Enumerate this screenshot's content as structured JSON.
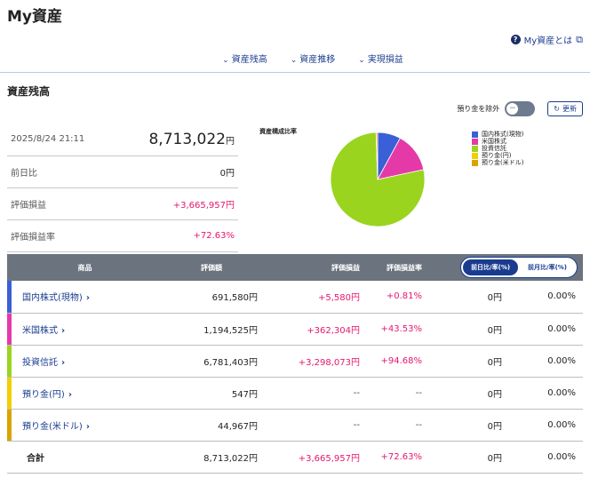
{
  "page_title": "My資産",
  "help_link": "My資産とは",
  "nav": [
    "資産残高",
    "資産推移",
    "実現損益"
  ],
  "section_title": "資産残高",
  "toggle_label": "預り金を除外",
  "toggle_symbol": "−",
  "refresh_label": "更新",
  "summary": {
    "timestamp": "2025/8/24 21:11",
    "total": "8,713,022",
    "total_unit": "円",
    "rows": [
      {
        "label": "前日比",
        "value": "0円",
        "positive": false
      },
      {
        "label": "評価損益",
        "value": "+3,665,957円",
        "positive": true
      },
      {
        "label": "評価損益率",
        "value": "+72.63%",
        "positive": true
      }
    ]
  },
  "pie": {
    "title": "資産構成比率",
    "slices": [
      {
        "label": "国内株式(現物)",
        "value": 691580,
        "color": "#3b5fd6"
      },
      {
        "label": "米国株式",
        "value": 1194525,
        "color": "#e639a8"
      },
      {
        "label": "投資信託",
        "value": 6781403,
        "color": "#9ad41f"
      },
      {
        "label": "預り金(円)",
        "value": 547,
        "color": "#f0d000"
      },
      {
        "label": "預り金(米ドル)",
        "value": 44967,
        "color": "#d9a400"
      }
    ]
  },
  "table": {
    "headers": [
      "商品",
      "評価額",
      "評価損益",
      "評価損益率"
    ],
    "toggle": {
      "active": "前日比/率(%)",
      "inactive": "前月比/率(%)"
    },
    "rows": [
      {
        "name": "国内株式(現物)",
        "value": "691,580円",
        "pl": "+5,580円",
        "rate": "+0.81%",
        "day": "0円",
        "dayrate": "0.00%",
        "color": "#3b5fd6",
        "muted": false
      },
      {
        "name": "米国株式",
        "value": "1,194,525円",
        "pl": "+362,304円",
        "rate": "+43.53%",
        "day": "0円",
        "dayrate": "0.00%",
        "color": "#e639a8",
        "muted": false
      },
      {
        "name": "投資信託",
        "value": "6,781,403円",
        "pl": "+3,298,073円",
        "rate": "+94.68%",
        "day": "0円",
        "dayrate": "0.00%",
        "color": "#9ad41f",
        "muted": false
      },
      {
        "name": "預り金(円)",
        "value": "547円",
        "pl": "--",
        "rate": "--",
        "day": "0円",
        "dayrate": "0.00%",
        "color": "#f0d000",
        "muted": true
      },
      {
        "name": "預り金(米ドル)",
        "value": "44,967円",
        "pl": "--",
        "rate": "--",
        "day": "0円",
        "dayrate": "0.00%",
        "color": "#d9a400",
        "muted": true
      }
    ],
    "total": {
      "name": "合計",
      "value": "8,713,022円",
      "pl": "+3,665,957円",
      "rate": "+72.63%",
      "day": "0円",
      "dayrate": "0.00%"
    }
  }
}
